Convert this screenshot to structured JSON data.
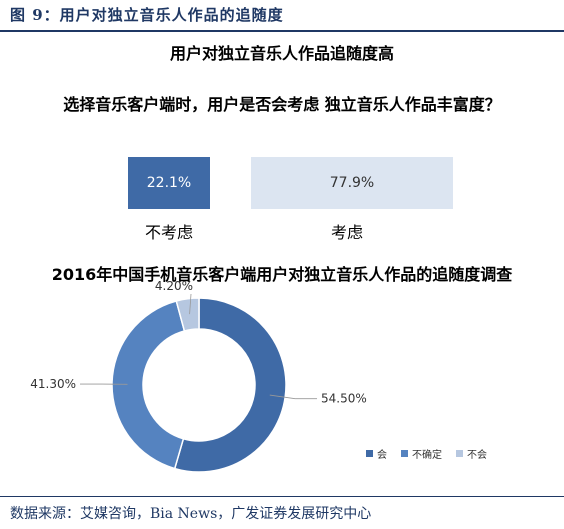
{
  "figure": {
    "label": "图 9：用户对独立音乐人作品的追随度",
    "subtitle": "用户对独立音乐人作品追随度高",
    "source": "数据来源：艾媒咨询，Bia News，广发证券发展研究中心"
  },
  "colors": {
    "dark": "#3f6aa6",
    "mid": "#5583c0",
    "light": "#b6c7e0",
    "pale": "#dce5f1",
    "navy": "#1f3864"
  },
  "chart_data": [
    {
      "type": "bar",
      "title": "选择音乐客户端时，用户是否会考虑 独立音乐人作品丰富度？",
      "categories": [
        "不考虑",
        "考虑"
      ],
      "values": [
        22.1,
        77.9
      ],
      "value_labels": [
        "22.1%",
        "77.9%"
      ],
      "orientation": "horizontal"
    },
    {
      "type": "pie",
      "title": "2016年中国手机音乐客户端用户对独立音乐人作品的追随度调查",
      "donut": true,
      "slices": [
        {
          "name": "会",
          "value": 54.5,
          "label": "54.50%",
          "color": "#3f6aa6"
        },
        {
          "name": "不确定",
          "value": 41.3,
          "label": "41.30%",
          "color": "#5583c0"
        },
        {
          "name": "不会",
          "value": 4.2,
          "label": "4.20%",
          "color": "#b6c7e0"
        }
      ],
      "legend_position": "bottom-right"
    }
  ]
}
